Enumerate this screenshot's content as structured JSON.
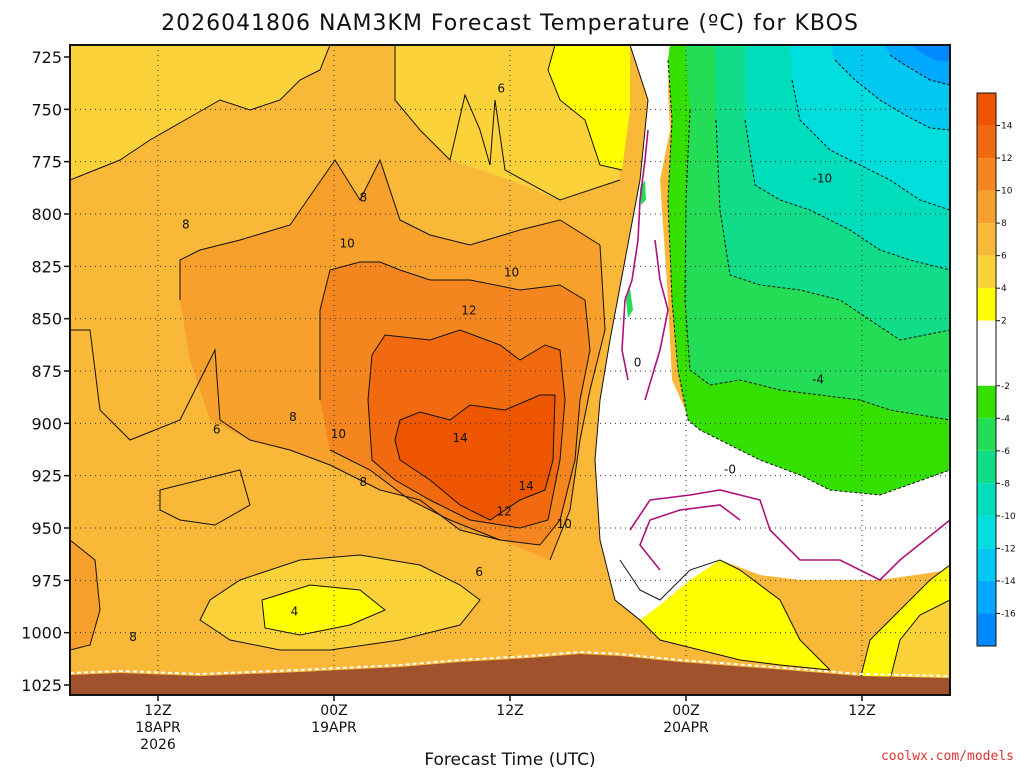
{
  "chart_data": {
    "type": "heatmap",
    "title": "2026041806 NAM3KM Forecast Temperature (ºC) for KBOS",
    "xlabel": "Forecast Time (UTC)",
    "ylabel": "",
    "credit": "coolwx.com/models",
    "y_pressure_ticks": [
      "725",
      "750",
      "775",
      "800",
      "825",
      "850",
      "875",
      "900",
      "925",
      "950",
      "975",
      "1000",
      "1025"
    ],
    "x_ticks": [
      {
        "hour": 6,
        "label": "12Z",
        "date": "18APR",
        "year": "2026"
      },
      {
        "hour": 18,
        "label": "00Z",
        "date": "19APR",
        "year": ""
      },
      {
        "hour": 30,
        "label": "12Z",
        "date": "",
        "year": ""
      },
      {
        "hour": 42,
        "label": "00Z",
        "date": "20APR",
        "year": ""
      },
      {
        "hour": 54,
        "label": "12Z",
        "date": "",
        "year": ""
      }
    ],
    "x_range_hours": [
      0,
      60
    ],
    "y_range_hpa": [
      725,
      1025
    ],
    "colorbar": {
      "ticks": [
        "14",
        "12",
        "10",
        "8",
        "6",
        "4",
        "2",
        "-2",
        "-4",
        "-6",
        "-8",
        "-10",
        "-12",
        "-14",
        "-16"
      ],
      "bands": [
        {
          "lo": 14,
          "hi": 16,
          "color": "#ee5500"
        },
        {
          "lo": 12,
          "hi": 14,
          "color": "#f26a10"
        },
        {
          "lo": 10,
          "hi": 12,
          "color": "#f5861f"
        },
        {
          "lo": 8,
          "hi": 10,
          "color": "#f7a02b"
        },
        {
          "lo": 6,
          "hi": 8,
          "color": "#fab838"
        },
        {
          "lo": 4,
          "hi": 6,
          "color": "#fcd23a"
        },
        {
          "lo": 2,
          "hi": 4,
          "color": "#ffff00"
        },
        {
          "lo": -2,
          "hi": 2,
          "color": "#ffffff"
        },
        {
          "lo": -4,
          "hi": -2,
          "color": "#33e000"
        },
        {
          "lo": -6,
          "hi": -4,
          "color": "#22dd55"
        },
        {
          "lo": -8,
          "hi": -6,
          "color": "#11dd88"
        },
        {
          "lo": -10,
          "hi": -8,
          "color": "#00ddbb"
        },
        {
          "lo": -12,
          "hi": -10,
          "color": "#00dddd"
        },
        {
          "lo": -14,
          "hi": -12,
          "color": "#00c8f0"
        },
        {
          "lo": -16,
          "hi": -14,
          "color": "#00a8ff"
        },
        {
          "lo": -18,
          "hi": -16,
          "color": "#0088ff"
        }
      ]
    },
    "contour_labels": [
      {
        "text": "6",
        "hour": 29.4,
        "p": 740
      },
      {
        "text": "8",
        "hour": 20.0,
        "p": 792
      },
      {
        "text": "8",
        "hour": 7.9,
        "p": 805
      },
      {
        "text": "10",
        "hour": 18.9,
        "p": 814
      },
      {
        "text": "-10",
        "hour": 51.3,
        "p": 783
      },
      {
        "text": "10",
        "hour": 30.1,
        "p": 828
      },
      {
        "text": "12",
        "hour": 27.2,
        "p": 846
      },
      {
        "text": "0",
        "hour": 38.7,
        "p": 871
      },
      {
        "text": "-4",
        "hour": 51.0,
        "p": 879
      },
      {
        "text": "8",
        "hour": 15.2,
        "p": 897
      },
      {
        "text": "6",
        "hour": 10.0,
        "p": 903
      },
      {
        "text": "10",
        "hour": 18.3,
        "p": 905
      },
      {
        "text": "14",
        "hour": 26.6,
        "p": 907
      },
      {
        "text": "-0",
        "hour": 45.0,
        "p": 922
      },
      {
        "text": "8",
        "hour": 20.0,
        "p": 928
      },
      {
        "text": "14",
        "hour": 31.1,
        "p": 930
      },
      {
        "text": "12",
        "hour": 29.6,
        "p": 942
      },
      {
        "text": "10",
        "hour": 33.7,
        "p": 948
      },
      {
        "text": "6",
        "hour": 27.9,
        "p": 971
      },
      {
        "text": "4",
        "hour": 15.3,
        "p": 990
      },
      {
        "text": "8",
        "hour": 4.3,
        "p": 1002
      }
    ]
  }
}
